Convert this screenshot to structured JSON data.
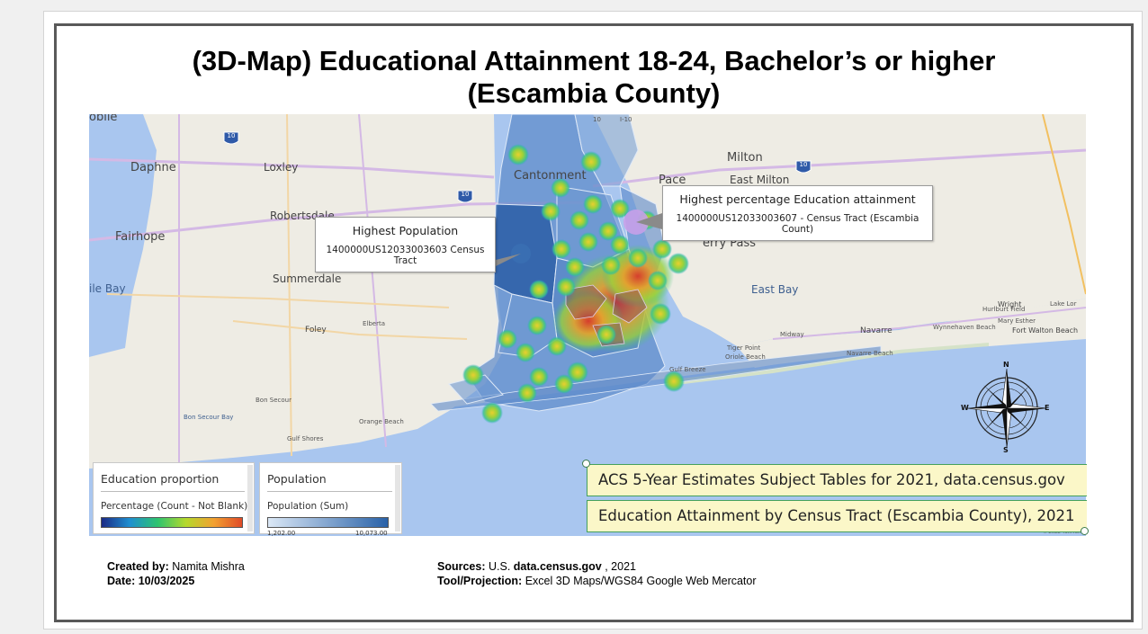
{
  "slide": {
    "title_line1": "(3D-Map) Educational Attainment 18-24, Bachelor’s or higher",
    "title_line2": "(Escambia County)"
  },
  "map": {
    "place_labels": {
      "mobile": "obile",
      "daphne": "Daphne",
      "loxley": "Loxley",
      "robertsdale": "Robertsdale",
      "fairhope": "Fairhope",
      "summerdale": "Summerdale",
      "mobile_bay": "ile Bay",
      "foley": "Foley",
      "elberta": "Elberta",
      "bon_secour": "Bon Secour",
      "bon_secour_bay": "Bon Secour Bay",
      "orange_beach": "Orange Beach",
      "gulf_shores": "Gulf Shores",
      "cantonment": "Cantonment",
      "pace": "Pace",
      "milton": "Milton",
      "east_milton": "East Milton",
      "gulf_breeze": "Gulf Breeze",
      "tiger_point": "Tiger Point",
      "oriole_beach": "Oriole Beach",
      "midway": "Midway",
      "navarre": "Navarre",
      "navarre_beach": "Navarre Beach",
      "east_bay": "East Bay",
      "ferry_pass": "erry Pass",
      "wright": "Wright",
      "lake_lorraine": "Lake Lor",
      "hurlburt_field": "Hurlburt Field",
      "mary_esther": "Mary Esther",
      "fort_walton_beach": "Fort Walton Beach",
      "wynnehaven_beach": "Wynnehaven Beach"
    },
    "highway_shields": [
      "10",
      "10",
      "10",
      "10"
    ],
    "interstate_label": "I-10",
    "callout_population": {
      "title": "Highest Population",
      "detail": "1400000US12033003603 Census Tract"
    },
    "callout_education": {
      "title": "Highest percentage Education attainment",
      "detail": "1400000US12033003607 - Census Tract (Escambia Count)"
    },
    "compass": {
      "n": "N",
      "s": "S",
      "e": "E",
      "w": "W"
    },
    "copyright": "© 2023 TomTom"
  },
  "legend_education": {
    "title": "Education proportion",
    "subtitle": "Percentage (Count - Not Blank)",
    "gradient_colors": [
      "#1b2a86",
      "#1f8fd0",
      "#2ec46f",
      "#b5d92c",
      "#f2a030",
      "#e04b28"
    ]
  },
  "legend_population": {
    "title": "Population",
    "subtitle": "Population (Sum)",
    "min_label": "1,202.00",
    "max_label": "10,073.00",
    "gradient_colors": [
      "#dbe8f6",
      "#2a62a8"
    ]
  },
  "source_boxes": [
    "ACS 5-Year Estimates Subject Tables for 2021, data.census.gov",
    "Education Attainment by Census Tract (Escambia County), 2021"
  ],
  "credits": {
    "created_by_label": "Created by:",
    "created_by_value": "Namita Mishra",
    "date_label": "Date: 10/03/2025",
    "sources_label": "Sources:",
    "sources_prefix": "U.S.",
    "sources_site": "data.census.gov",
    "sources_year": ", 2021",
    "tool_label": "Tool/Projection:",
    "tool_value": "Excel 3D Maps/WGS84 Google Web Mercator"
  },
  "colors": {
    "water": "#a9c6ef",
    "land": "#eeece4",
    "county_fill": "#5b89c9",
    "highest_population_tract": "#2b5ea6",
    "highlight_marker": "#c7a0e8",
    "source_box_fill": "#fbf7c8",
    "source_box_border": "#44a05c"
  }
}
